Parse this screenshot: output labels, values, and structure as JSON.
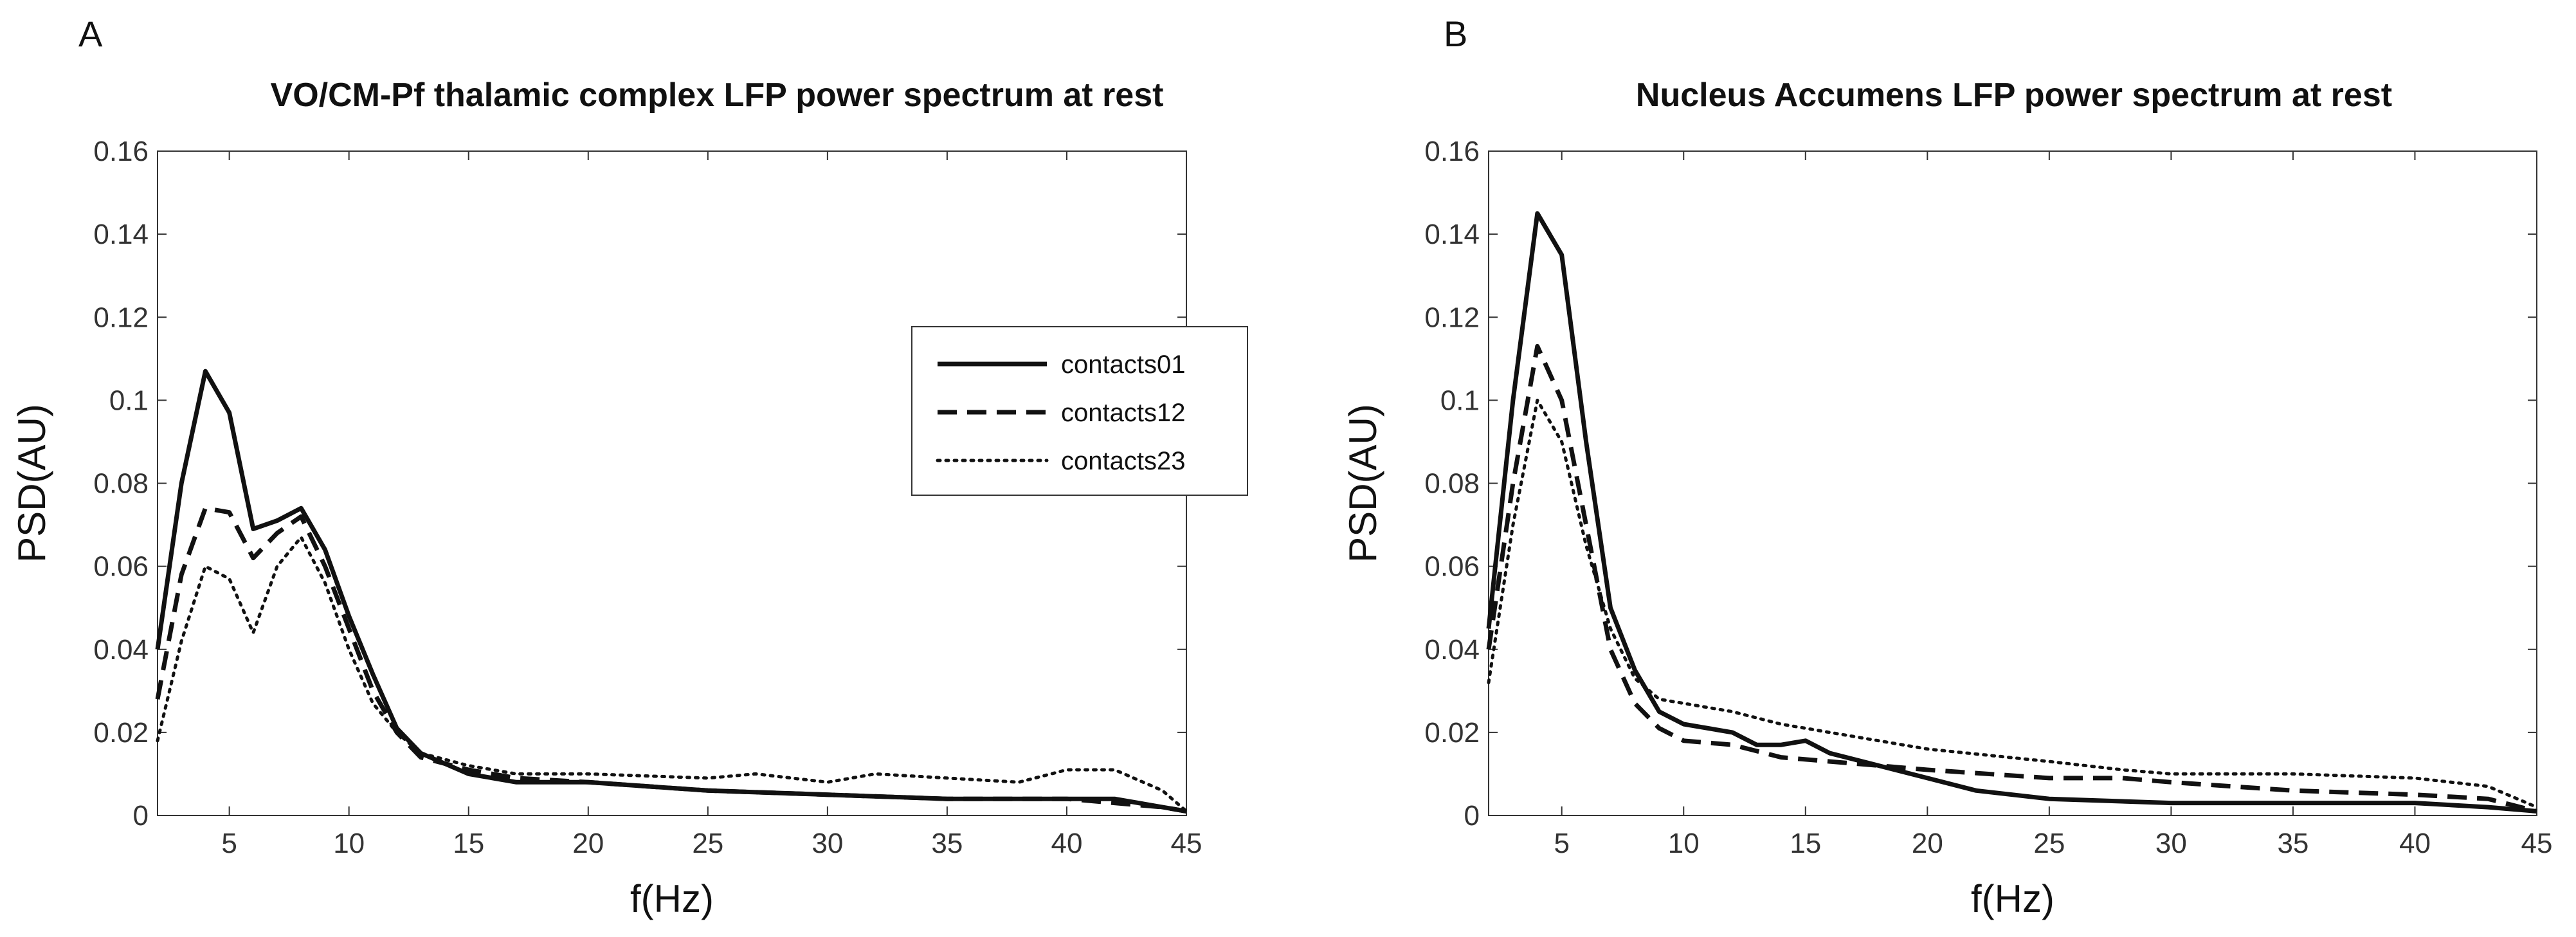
{
  "chart_data": [
    {
      "panel": "A",
      "type": "line",
      "title": "VO/CM-Pf thalamic complex LFP power spectrum at rest",
      "xlabel": "f(Hz)",
      "ylabel": "PSD(AU)",
      "xlim": [
        2,
        45
      ],
      "ylim": [
        0,
        0.16
      ],
      "xticks": [
        5,
        10,
        15,
        20,
        25,
        30,
        35,
        40,
        45
      ],
      "xtick_labels": [
        "5",
        "10",
        "15",
        "20",
        "25",
        "30",
        "35",
        "40",
        "45"
      ],
      "yticks": [
        0,
        0.02,
        0.04,
        0.06,
        0.08,
        0.1,
        0.12,
        0.14,
        0.16
      ],
      "ytick_labels": [
        "0",
        "0.02",
        "0.04",
        "0.06",
        "0.08",
        "0.1",
        "0.12",
        "0.14",
        "0.16"
      ],
      "legend": {
        "placement": "upper-right",
        "entries": [
          "contacts01",
          "contacts12",
          "contacts23"
        ]
      },
      "series": [
        {
          "name": "contacts01",
          "style": "solid",
          "x": [
            2,
            3,
            4,
            5,
            6,
            7,
            8,
            9,
            10,
            11,
            12,
            13,
            15,
            17,
            20,
            25,
            30,
            35,
            40,
            42,
            44,
            45
          ],
          "y": [
            0.04,
            0.08,
            0.107,
            0.097,
            0.069,
            0.071,
            0.074,
            0.064,
            0.048,
            0.034,
            0.021,
            0.015,
            0.01,
            0.008,
            0.008,
            0.006,
            0.005,
            0.004,
            0.004,
            0.004,
            0.002,
            0.001
          ]
        },
        {
          "name": "contacts12",
          "style": "dashed",
          "x": [
            2,
            3,
            4,
            5,
            6,
            7,
            8,
            9,
            10,
            11,
            12,
            13,
            15,
            17,
            20,
            25,
            30,
            35,
            40,
            42,
            44,
            45
          ],
          "y": [
            0.028,
            0.058,
            0.074,
            0.073,
            0.062,
            0.068,
            0.072,
            0.06,
            0.045,
            0.03,
            0.02,
            0.014,
            0.011,
            0.009,
            0.008,
            0.006,
            0.005,
            0.004,
            0.004,
            0.003,
            0.002,
            0.001
          ]
        },
        {
          "name": "contacts23",
          "style": "dotted",
          "x": [
            2,
            3,
            4,
            5,
            6,
            7,
            8,
            9,
            10,
            11,
            12,
            13,
            15,
            17,
            20,
            25,
            27,
            30,
            32,
            35,
            38,
            40,
            42,
            44,
            45
          ],
          "y": [
            0.018,
            0.042,
            0.06,
            0.057,
            0.044,
            0.06,
            0.067,
            0.056,
            0.04,
            0.027,
            0.02,
            0.015,
            0.012,
            0.01,
            0.01,
            0.009,
            0.01,
            0.008,
            0.01,
            0.009,
            0.008,
            0.011,
            0.011,
            0.006,
            0.001
          ]
        }
      ]
    },
    {
      "panel": "B",
      "type": "line",
      "title": "Nucleus Accumens LFP power spectrum at rest",
      "xlabel": "f(Hz)",
      "ylabel": "PSD(AU)",
      "xlim": [
        2,
        45
      ],
      "ylim": [
        0,
        0.16
      ],
      "xticks": [
        5,
        10,
        15,
        20,
        25,
        30,
        35,
        40,
        45
      ],
      "xtick_labels": [
        "5",
        "10",
        "15",
        "20",
        "25",
        "30",
        "35",
        "40",
        "45"
      ],
      "yticks": [
        0,
        0.02,
        0.04,
        0.06,
        0.08,
        0.1,
        0.12,
        0.14,
        0.16
      ],
      "ytick_labels": [
        "0",
        "0.02",
        "0.04",
        "0.06",
        "0.08",
        "0.1",
        "0.12",
        "0.14",
        "0.16"
      ],
      "series": [
        {
          "name": "contacts01",
          "style": "solid",
          "x": [
            2,
            3,
            4,
            5,
            6,
            7,
            8,
            9,
            10,
            12,
            13,
            14,
            15,
            16,
            18,
            20,
            22,
            25,
            30,
            35,
            40,
            43,
            45
          ],
          "y": [
            0.045,
            0.1,
            0.145,
            0.135,
            0.09,
            0.05,
            0.035,
            0.025,
            0.022,
            0.02,
            0.017,
            0.017,
            0.018,
            0.015,
            0.012,
            0.009,
            0.006,
            0.004,
            0.003,
            0.003,
            0.003,
            0.002,
            0.001
          ]
        },
        {
          "name": "contacts12",
          "style": "dashed",
          "x": [
            2,
            3,
            4,
            5,
            6,
            7,
            8,
            9,
            10,
            12,
            14,
            16,
            18,
            20,
            25,
            28,
            30,
            35,
            40,
            43,
            45
          ],
          "y": [
            0.04,
            0.08,
            0.113,
            0.1,
            0.07,
            0.04,
            0.027,
            0.021,
            0.018,
            0.017,
            0.014,
            0.013,
            0.012,
            0.011,
            0.009,
            0.009,
            0.008,
            0.006,
            0.005,
            0.004,
            0.001
          ]
        },
        {
          "name": "contacts23",
          "style": "dotted",
          "x": [
            2,
            3,
            4,
            5,
            6,
            7,
            8,
            9,
            10,
            12,
            14,
            16,
            18,
            20,
            25,
            28,
            30,
            35,
            40,
            43,
            45
          ],
          "y": [
            0.032,
            0.07,
            0.1,
            0.09,
            0.065,
            0.045,
            0.033,
            0.028,
            0.027,
            0.025,
            0.022,
            0.02,
            0.018,
            0.016,
            0.013,
            0.011,
            0.01,
            0.01,
            0.009,
            0.007,
            0.002
          ]
        }
      ]
    }
  ]
}
